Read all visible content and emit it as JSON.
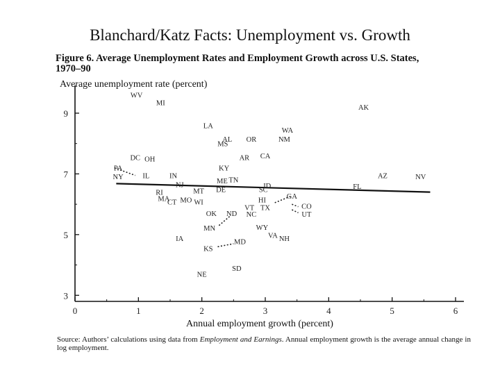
{
  "slide": {
    "title": "Blanchard/Katz Facts:  Unemployment vs. Growth"
  },
  "figure": {
    "title_line1": "Figure 6.  Average Unemployment Rates and Employment Growth across U.S. States,",
    "title_line2": "1970–90"
  },
  "source": {
    "lead": "Source:  Authors’ calculations using data from ",
    "italic": "Employment and Earnings",
    "tail": ".  Annual employment growth is the average annual change in log employment."
  },
  "chart_data": {
    "type": "scatter",
    "title": "Figure 6.  Average Unemployment Rates and Employment Growth across U.S. States, 1970–90",
    "xlabel": "Annual employment growth (percent)",
    "ylabel": "Average unemployment rate (percent)",
    "xlim": [
      0,
      6
    ],
    "ylim": [
      2.8,
      9.8
    ],
    "x_ticks": [
      0,
      1,
      2,
      3,
      4,
      5,
      6
    ],
    "y_ticks": [
      3,
      5,
      7,
      9
    ],
    "grid": false,
    "fit_line": {
      "x": [
        0.65,
        5.6
      ],
      "y": [
        6.68,
        6.4
      ]
    },
    "points": [
      {
        "label": "WV",
        "x": 0.97,
        "y": 9.6
      },
      {
        "label": "MI",
        "x": 1.35,
        "y": 9.35
      },
      {
        "label": "AK",
        "x": 4.55,
        "y": 9.2
      },
      {
        "label": "LA",
        "x": 2.1,
        "y": 8.6
      },
      {
        "label": "WA",
        "x": 3.35,
        "y": 8.45
      },
      {
        "label": "AL",
        "x": 2.4,
        "y": 8.15
      },
      {
        "label": "OR",
        "x": 2.78,
        "y": 8.15
      },
      {
        "label": "NM",
        "x": 3.3,
        "y": 8.15
      },
      {
        "label": "MS",
        "x": 2.33,
        "y": 8.0
      },
      {
        "label": "AR",
        "x": 2.67,
        "y": 7.55
      },
      {
        "label": "CA",
        "x": 3.0,
        "y": 7.6
      },
      {
        "label": "DC",
        "x": 0.95,
        "y": 7.55
      },
      {
        "label": "OH",
        "x": 1.18,
        "y": 7.5
      },
      {
        "label": "KY",
        "x": 2.35,
        "y": 7.2
      },
      {
        "label": "PA",
        "x": 0.68,
        "y": 7.2
      },
      {
        "label": "IN",
        "x": 1.55,
        "y": 6.95
      },
      {
        "label": "IL",
        "x": 1.12,
        "y": 6.95
      },
      {
        "label": "NY",
        "x": 0.68,
        "y": 6.92
      },
      {
        "label": "AZ",
        "x": 4.85,
        "y": 6.95
      },
      {
        "label": "NV",
        "x": 5.45,
        "y": 6.92
      },
      {
        "label": "ME",
        "x": 2.32,
        "y": 6.78
      },
      {
        "label": "TN",
        "x": 2.5,
        "y": 6.82
      },
      {
        "label": "NJ",
        "x": 1.65,
        "y": 6.65
      },
      {
        "label": "ID",
        "x": 3.03,
        "y": 6.62
      },
      {
        "label": "FL",
        "x": 4.45,
        "y": 6.6
      },
      {
        "label": "MT",
        "x": 1.95,
        "y": 6.45
      },
      {
        "label": "DE",
        "x": 2.3,
        "y": 6.5
      },
      {
        "label": "SC",
        "x": 2.97,
        "y": 6.5
      },
      {
        "label": "RI",
        "x": 1.33,
        "y": 6.4
      },
      {
        "label": "GA",
        "x": 3.42,
        "y": 6.28
      },
      {
        "label": "MA",
        "x": 1.4,
        "y": 6.2
      },
      {
        "label": "CT",
        "x": 1.53,
        "y": 6.08
      },
      {
        "label": "MO",
        "x": 1.75,
        "y": 6.15
      },
      {
        "label": "WI",
        "x": 1.95,
        "y": 6.08
      },
      {
        "label": "HI",
        "x": 2.95,
        "y": 6.15
      },
      {
        "label": "VT",
        "x": 2.75,
        "y": 5.9
      },
      {
        "label": "TX",
        "x": 3.0,
        "y": 5.9
      },
      {
        "label": "CO",
        "x": 3.65,
        "y": 5.95
      },
      {
        "label": "OK",
        "x": 2.15,
        "y": 5.7
      },
      {
        "label": "ND",
        "x": 2.47,
        "y": 5.7
      },
      {
        "label": "NC",
        "x": 2.78,
        "y": 5.68
      },
      {
        "label": "UT",
        "x": 3.65,
        "y": 5.68
      },
      {
        "label": "MN",
        "x": 2.12,
        "y": 5.23
      },
      {
        "label": "WY",
        "x": 2.95,
        "y": 5.25
      },
      {
        "label": "VA",
        "x": 3.12,
        "y": 4.98
      },
      {
        "label": "NH",
        "x": 3.3,
        "y": 4.88
      },
      {
        "label": "IA",
        "x": 1.65,
        "y": 4.88
      },
      {
        "label": "MD",
        "x": 2.6,
        "y": 4.78
      },
      {
        "label": "KS",
        "x": 2.1,
        "y": 4.55
      },
      {
        "label": "SD",
        "x": 2.55,
        "y": 3.9
      },
      {
        "label": "NE",
        "x": 2.0,
        "y": 3.7
      }
    ],
    "connectors": [
      {
        "from": [
          0.62,
          7.2
        ],
        "to": [
          0.95,
          6.95
        ]
      },
      {
        "from": [
          3.15,
          6.05
        ],
        "to": [
          3.42,
          6.28
        ]
      },
      {
        "from": [
          3.42,
          6.0
        ],
        "to": [
          3.52,
          5.92
        ]
      },
      {
        "from": [
          3.42,
          5.82
        ],
        "to": [
          3.52,
          5.72
        ]
      },
      {
        "from": [
          2.27,
          5.3
        ],
        "to": [
          2.45,
          5.62
        ]
      },
      {
        "from": [
          2.25,
          4.6
        ],
        "to": [
          2.5,
          4.7
        ]
      }
    ]
  }
}
